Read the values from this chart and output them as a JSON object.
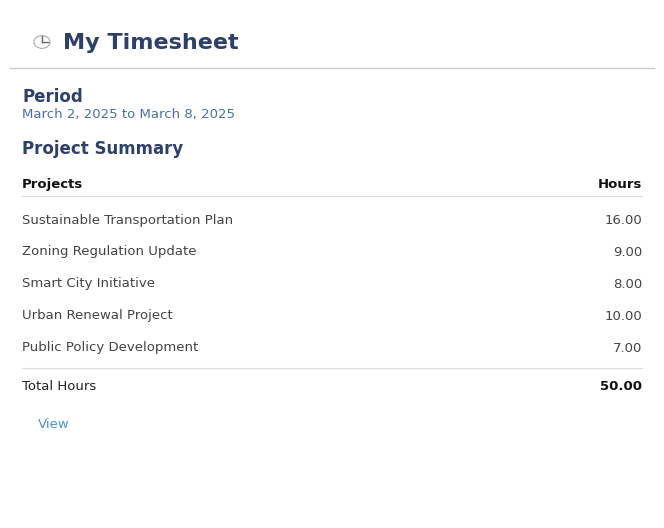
{
  "title": "My Timesheet",
  "period_label": "Period",
  "period_value": "March 2, 2025 to March 8, 2025",
  "section_title": "Project Summary",
  "col_project": "Projects",
  "col_hours": "Hours",
  "projects": [
    {
      "name": "Sustainable Transportation Plan",
      "hours": "16.00"
    },
    {
      "name": "Zoning Regulation Update",
      "hours": "9.00"
    },
    {
      "name": "Smart City Initiative",
      "hours": "8.00"
    },
    {
      "name": "Urban Renewal Project",
      "hours": "10.00"
    },
    {
      "name": "Public Policy Development",
      "hours": "7.00"
    }
  ],
  "total_label": "Total Hours",
  "total_hours": "50.00",
  "button_label": "View",
  "bg_color": "#ebebeb",
  "card_color": "#ffffff",
  "header_bg": "#e8e8e8",
  "header_text_color": "#2d3f6b",
  "period_label_color": "#2d3f6b",
  "period_value_color": "#4a6fa5",
  "section_title_color": "#2d3f6b",
  "col_header_color": "#111111",
  "row_text_color": "#444444",
  "total_label_color": "#222222",
  "total_hours_color": "#111111",
  "button_text_color": "#4a90d9",
  "button_border_color": "#7ab3e8",
  "separator_color": "#dddddd"
}
